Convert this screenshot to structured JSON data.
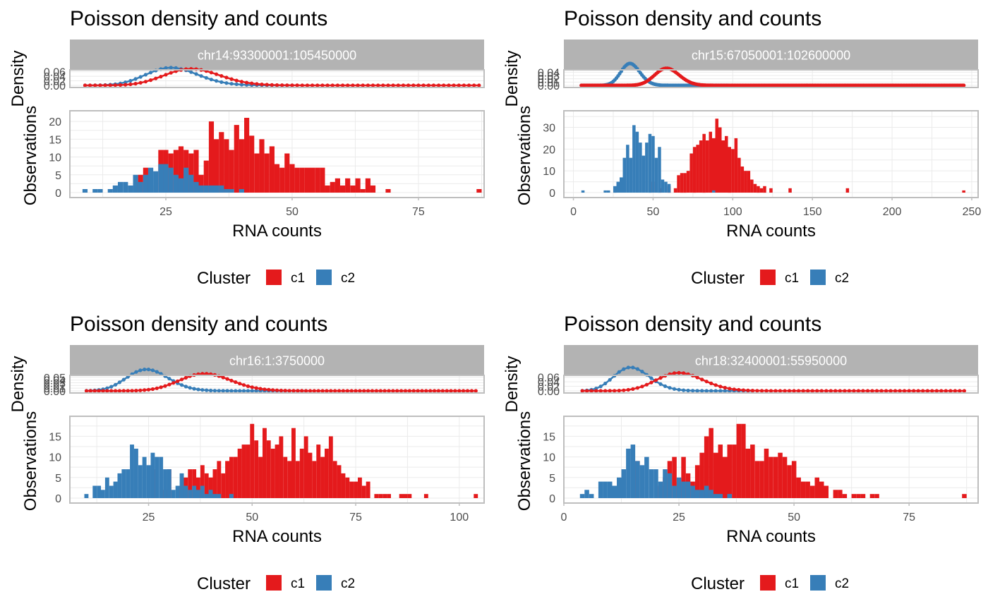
{
  "colors": {
    "c1": "#E41A1C",
    "c2": "#377EB8",
    "strip": "#B3B3B3",
    "panel_border": "#BEBEBE",
    "grid_major": "#EBEBEB",
    "grid_minor": "#F4F4F4",
    "axis_text": "#4D4D4D",
    "text": "#000000"
  },
  "chart_data": [
    {
      "type": "bar",
      "title": "Poisson density and counts",
      "strip_label": "chr14:93300001:105450000",
      "density_ylabel": "Density",
      "density_ticks": [
        "0.00",
        "0.02",
        "0.04",
        "0.06"
      ],
      "density_ylim": [
        0,
        0.065
      ],
      "ylabel": "Observations",
      "xlabel": "RNA counts",
      "x_ticks": [
        25,
        50,
        75
      ],
      "xlim": [
        6,
        88
      ],
      "y_ticks": [
        0,
        5,
        10,
        15,
        20
      ],
      "ylim": [
        0,
        22
      ],
      "density_curve_range": [
        9,
        87
      ],
      "lambdas": {
        "c1": 30.5,
        "c2": 26.5
      },
      "curve_ends": {
        "c1": 87,
        "c2": 50
      },
      "legend_title": "Cluster",
      "legend_items": [
        "c1",
        "c2"
      ],
      "series": [
        {
          "name": "c1",
          "x": [
            20,
            21,
            22,
            24,
            25,
            26,
            27,
            28,
            29,
            30,
            31,
            32,
            33,
            34,
            35,
            36,
            37,
            38,
            39,
            40,
            41,
            42,
            43,
            44,
            45,
            46,
            47,
            48,
            49,
            50,
            51,
            52,
            53,
            54,
            55,
            56,
            57,
            58,
            59,
            60,
            61,
            62,
            63,
            64,
            65,
            66,
            69,
            87
          ],
          "values": [
            5,
            7,
            2,
            12,
            12,
            11,
            12,
            13,
            12,
            11,
            12,
            5,
            9,
            20,
            15,
            17,
            15,
            12,
            19,
            15,
            21,
            16,
            11,
            15,
            11,
            13,
            8,
            7,
            11,
            8,
            7,
            7,
            7,
            7,
            7,
            7,
            2,
            3,
            4,
            2,
            4,
            2,
            4,
            1,
            4,
            2,
            1,
            1
          ]
        },
        {
          "name": "c2",
          "x": [
            9,
            11,
            12,
            14,
            15,
            16,
            17,
            18,
            19,
            20,
            21,
            22,
            23,
            24,
            25,
            26,
            27,
            28,
            29,
            30,
            31,
            32,
            33,
            34,
            35,
            36,
            37,
            38,
            40
          ],
          "values": [
            1,
            1,
            1,
            1,
            2,
            3,
            3,
            2,
            5,
            3,
            5,
            7,
            6,
            8,
            8,
            7,
            5,
            4,
            7,
            5,
            3,
            2,
            2,
            2,
            2,
            2,
            1,
            1,
            1
          ]
        }
      ]
    },
    {
      "type": "bar",
      "title": "Poisson density and counts",
      "strip_label": "chr15:67050001:102600000",
      "density_ylabel": "Density",
      "density_ticks": [
        "0.00",
        "0.01",
        "0.02",
        "0.03",
        "0.04"
      ],
      "density_ylim": [
        0,
        0.045
      ],
      "ylabel": "Observations",
      "xlabel": "RNA counts",
      "x_ticks": [
        0,
        50,
        100,
        150,
        200,
        250
      ],
      "xlim": [
        -6,
        254
      ],
      "y_ticks": [
        0,
        10,
        20,
        30
      ],
      "ylim": [
        0,
        36
      ],
      "density_curve_range": [
        5,
        245
      ],
      "lambdas": {
        "c1": 59,
        "c2": 36
      },
      "curve_ends": {
        "c1": 245,
        "c2": 97
      },
      "legend_title": "Cluster",
      "legend_items": [
        "c1",
        "c2"
      ],
      "series": [
        {
          "name": "c1",
          "x": [
            50,
            55,
            60,
            64,
            66,
            68,
            70,
            72,
            74,
            76,
            78,
            80,
            82,
            84,
            86,
            88,
            90,
            92,
            94,
            96,
            98,
            100,
            102,
            104,
            106,
            108,
            110,
            112,
            114,
            116,
            118,
            120,
            124,
            136,
            172,
            245
          ],
          "values": [
            5,
            2,
            3,
            2,
            8,
            9,
            9,
            10,
            18,
            21,
            22,
            24,
            27,
            24,
            28,
            25,
            34,
            30,
            24,
            26,
            21,
            20,
            25,
            16,
            12,
            10,
            10,
            6,
            4,
            3,
            2,
            3,
            2,
            2,
            2,
            1
          ]
        },
        {
          "name": "c2",
          "x": [
            6,
            20,
            22,
            26,
            28,
            30,
            32,
            34,
            36,
            38,
            40,
            42,
            44,
            46,
            48,
            50,
            52,
            54,
            56,
            58,
            60,
            88
          ],
          "values": [
            1,
            1,
            1,
            3,
            5,
            7,
            16,
            22,
            16,
            31,
            28,
            23,
            17,
            23,
            27,
            26,
            16,
            21,
            6,
            5,
            4,
            1
          ]
        }
      ]
    },
    {
      "type": "bar",
      "title": "Poisson density and counts",
      "strip_label": "chr16:1:3750000",
      "density_ylabel": "Density",
      "density_ticks": [
        "0.00",
        "0.01",
        "0.02",
        "0.03",
        "0.04",
        "0.05"
      ],
      "density_ylim": [
        0,
        0.055
      ],
      "ylabel": "Observations",
      "xlabel": "RNA counts",
      "x_ticks": [
        25,
        50,
        75,
        100
      ],
      "xlim": [
        6,
        106
      ],
      "y_ticks": [
        0,
        5,
        10,
        15
      ],
      "ylim": [
        0,
        19
      ],
      "density_curve_range": [
        10,
        104
      ],
      "lambdas": {
        "c1": 39,
        "c2": 25
      },
      "curve_ends": {
        "c1": 104,
        "c2": 63
      },
      "legend_title": "Cluster",
      "legend_items": [
        "c1",
        "c2"
      ],
      "series": [
        {
          "name": "c1",
          "x": [
            26,
            29,
            30,
            33,
            34,
            35,
            36,
            37,
            38,
            39,
            40,
            41,
            42,
            43,
            44,
            45,
            46,
            47,
            48,
            49,
            50,
            51,
            52,
            53,
            54,
            55,
            56,
            57,
            58,
            59,
            60,
            61,
            62,
            63,
            64,
            65,
            66,
            67,
            68,
            69,
            70,
            71,
            72,
            73,
            74,
            75,
            76,
            77,
            78,
            80,
            81,
            82,
            83,
            86,
            87,
            88,
            92,
            104
          ],
          "values": [
            7,
            2,
            7,
            3,
            5,
            7,
            7,
            5,
            8,
            6,
            5,
            7,
            9,
            6,
            9,
            10,
            10,
            12,
            13,
            13,
            18,
            14,
            10,
            17,
            14,
            12,
            13,
            15,
            10,
            9,
            17,
            9,
            12,
            15,
            11,
            9,
            13,
            10,
            12,
            15,
            9,
            8,
            6,
            5,
            4,
            4,
            5,
            3,
            4,
            1,
            1,
            1,
            1,
            1,
            1,
            1,
            1,
            1
          ]
        },
        {
          "name": "c2",
          "x": [
            10,
            12,
            13,
            14,
            15,
            16,
            17,
            18,
            19,
            20,
            21,
            22,
            23,
            24,
            25,
            26,
            27,
            28,
            29,
            30,
            31,
            32,
            33,
            34,
            35,
            36,
            37,
            38,
            39,
            40,
            41,
            42,
            45
          ],
          "values": [
            1,
            3,
            3,
            2,
            5,
            3,
            4,
            6,
            7,
            7,
            13,
            12,
            8,
            10,
            8,
            11,
            10,
            10,
            7,
            7,
            2,
            3,
            6,
            3,
            2,
            3,
            2,
            3,
            1,
            2,
            1,
            1,
            1
          ]
        }
      ]
    },
    {
      "type": "bar",
      "title": "Poisson density and counts",
      "strip_label": "chr18:32400001:55950000",
      "density_ylabel": "Density",
      "density_ticks": [
        "0.00",
        "0.02",
        "0.04",
        "0.06"
      ],
      "density_ylim": [
        0,
        0.065
      ],
      "ylabel": "Observations",
      "xlabel": "RNA counts",
      "x_ticks": [
        0,
        25,
        50,
        75
      ],
      "xlim": [
        0,
        90
      ],
      "y_ticks": [
        0,
        5,
        10,
        15
      ],
      "ylim": [
        0,
        19
      ],
      "density_curve_range": [
        4,
        87
      ],
      "lambdas": {
        "c1": 25.5,
        "c2": 15
      },
      "curve_ends": {
        "c1": 87,
        "c2": 41
      },
      "legend_title": "Cluster",
      "legend_items": [
        "c1",
        "c2"
      ],
      "series": [
        {
          "name": "c1",
          "x": [
            16,
            21,
            22,
            23,
            24,
            25,
            26,
            27,
            28,
            29,
            30,
            31,
            32,
            33,
            34,
            35,
            36,
            37,
            38,
            39,
            40,
            41,
            42,
            43,
            44,
            45,
            46,
            47,
            48,
            49,
            50,
            51,
            52,
            53,
            54,
            55,
            56,
            57,
            59,
            60,
            61,
            63,
            64,
            65,
            67,
            68,
            87
          ],
          "values": [
            9,
            3,
            5,
            9,
            10,
            4,
            10,
            6,
            4,
            8,
            11,
            15,
            17,
            11,
            13,
            10,
            13,
            13,
            18,
            18,
            12,
            13,
            9,
            9,
            12,
            10,
            10,
            11,
            10,
            8,
            9,
            5,
            4,
            4,
            3,
            5,
            4,
            3,
            2,
            2,
            1,
            1,
            1,
            1,
            1,
            1,
            1
          ]
        },
        {
          "name": "c2",
          "x": [
            4,
            5,
            6,
            8,
            9,
            10,
            11,
            12,
            13,
            14,
            15,
            16,
            17,
            18,
            19,
            20,
            21,
            22,
            23,
            24,
            25,
            26,
            27,
            28,
            29,
            30,
            31,
            32,
            33,
            34,
            36
          ],
          "values": [
            1,
            2,
            1,
            4,
            4,
            4,
            3,
            5,
            7,
            12,
            13,
            9,
            8,
            10,
            7,
            7,
            4,
            7,
            6,
            3,
            5,
            4,
            4,
            3,
            2,
            2,
            3,
            2,
            1,
            1,
            1
          ]
        }
      ]
    }
  ]
}
